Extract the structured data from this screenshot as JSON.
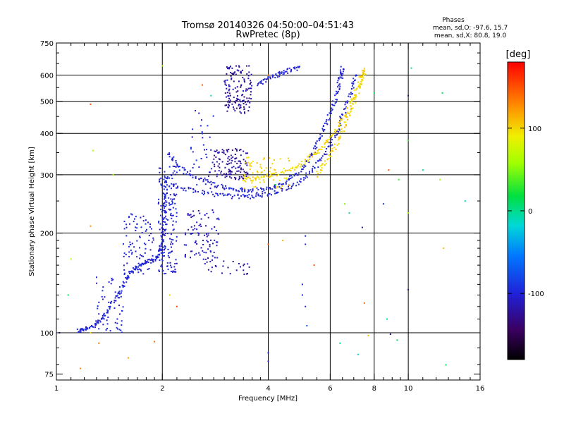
{
  "chart_data": {
    "type": "scatter",
    "title": "Tromsø 20140326 04:50:00–04:51:43",
    "subtitle": "RwPretec (8p)",
    "xlabel": "Frequency [MHz]",
    "ylabel": "Stationary phase Virtual Height [km]",
    "x_scale": "log",
    "y_scale": "log",
    "xlim": [
      1,
      16
    ],
    "ylim": [
      72,
      750
    ],
    "x_ticks": [
      1,
      2,
      4,
      6,
      8,
      10,
      16
    ],
    "x_minor_ticks": [
      1.1,
      1.2,
      1.3,
      1.4,
      1.5,
      1.6,
      1.7,
      1.8,
      1.9,
      2.2,
      2.4,
      2.6,
      2.8,
      3.0,
      3.2,
      3.4,
      3.6,
      3.8,
      4.5,
      5.0,
      5.5,
      6.5,
      7.0,
      7.5,
      8.5,
      9.0,
      9.5,
      11,
      12,
      13,
      14,
      15
    ],
    "y_ticks": [
      75,
      100,
      200,
      300,
      400,
      500,
      600,
      750
    ],
    "y_minor_ticks": [
      80,
      90,
      110,
      120,
      130,
      140,
      150,
      160,
      170,
      180,
      190,
      250,
      350,
      450,
      550,
      650,
      700
    ],
    "x_grid": [
      2,
      4,
      6,
      8,
      10
    ],
    "y_grid": [
      100,
      200,
      300,
      400,
      500,
      600
    ],
    "grid": true,
    "stats_header": "Phases",
    "stats": [
      "mean, sd,O: -97.6, 15.7",
      "mean, sd,X:  80.8, 19.0"
    ],
    "colorbar": {
      "label": "[deg]",
      "range": [
        -180,
        180
      ],
      "ticks": [
        100,
        0,
        -100
      ],
      "tick_labels": [
        "100",
        "0",
        "-100"
      ],
      "placement": "right"
    },
    "series": [
      {
        "kind": "trace",
        "phase": -100,
        "points": [
          [
            1.15,
            101
          ],
          [
            1.2,
            103
          ],
          [
            1.28,
            105
          ],
          [
            1.35,
            110
          ],
          [
            1.42,
            120
          ],
          [
            1.5,
            132
          ],
          [
            1.58,
            145
          ],
          [
            1.65,
            155
          ],
          [
            1.75,
            162
          ],
          [
            1.85,
            165
          ],
          [
            1.95,
            170
          ],
          [
            2.0,
            185
          ],
          [
            2.02,
            210
          ],
          [
            2.03,
            240
          ],
          [
            2.04,
            270
          ],
          [
            2.05,
            300
          ]
        ]
      },
      {
        "kind": "trace",
        "phase": -100,
        "points": [
          [
            2.08,
            350
          ],
          [
            2.2,
            320
          ],
          [
            2.4,
            300
          ],
          [
            2.7,
            285
          ],
          [
            3.0,
            275
          ],
          [
            3.3,
            270
          ],
          [
            3.6,
            268
          ],
          [
            4.0,
            272
          ],
          [
            4.4,
            282
          ],
          [
            4.8,
            300
          ],
          [
            5.2,
            330
          ],
          [
            5.5,
            370
          ],
          [
            5.8,
            420
          ],
          [
            6.1,
            480
          ],
          [
            6.3,
            540
          ],
          [
            6.45,
            600
          ],
          [
            6.5,
            630
          ]
        ]
      },
      {
        "kind": "trace",
        "phase": -100,
        "points": [
          [
            2.08,
            280
          ],
          [
            2.4,
            270
          ],
          [
            2.8,
            262
          ],
          [
            3.2,
            258
          ],
          [
            3.6,
            258
          ],
          [
            4.0,
            262
          ],
          [
            4.5,
            272
          ],
          [
            5.0,
            290
          ],
          [
            5.5,
            320
          ],
          [
            5.9,
            360
          ],
          [
            6.3,
            410
          ],
          [
            6.6,
            470
          ],
          [
            6.9,
            540
          ],
          [
            7.1,
            610
          ]
        ]
      },
      {
        "kind": "trace",
        "phase": 100,
        "points": [
          [
            3.4,
            290
          ],
          [
            3.8,
            295
          ],
          [
            4.2,
            300
          ],
          [
            4.6,
            310
          ],
          [
            5.0,
            325
          ],
          [
            5.4,
            345
          ],
          [
            5.8,
            370
          ],
          [
            6.2,
            405
          ],
          [
            6.6,
            450
          ],
          [
            7.0,
            510
          ],
          [
            7.3,
            580
          ],
          [
            7.5,
            630
          ]
        ]
      },
      {
        "kind": "trace",
        "phase": 100,
        "points": [
          [
            5.5,
            300
          ],
          [
            5.9,
            330
          ],
          [
            6.3,
            380
          ],
          [
            6.7,
            440
          ],
          [
            7.0,
            500
          ],
          [
            7.3,
            560
          ],
          [
            7.5,
            610
          ]
        ]
      },
      {
        "kind": "trace",
        "phase": -100,
        "points": [
          [
            3.7,
            560
          ],
          [
            4.0,
            585
          ],
          [
            4.3,
            605
          ],
          [
            4.6,
            620
          ],
          [
            4.9,
            630
          ]
        ]
      },
      {
        "kind": "cluster",
        "phase": -120,
        "x": [
          2.8,
          3.5
        ],
        "y": [
          290,
          360
        ],
        "count": 120
      },
      {
        "kind": "cluster",
        "phase": -120,
        "x": [
          3.0,
          3.6
        ],
        "y": [
          460,
          640
        ],
        "count": 140
      },
      {
        "kind": "cluster",
        "phase": -110,
        "x": [
          2.3,
          2.9
        ],
        "y": [
          165,
          235
        ],
        "count": 90
      },
      {
        "kind": "cluster",
        "phase": -100,
        "x": [
          1.95,
          2.2
        ],
        "y": [
          150,
          320
        ],
        "count": 160
      },
      {
        "kind": "cluster",
        "phase": -100,
        "x": [
          1.55,
          1.9
        ],
        "y": [
          150,
          230
        ],
        "count": 90
      },
      {
        "kind": "cluster",
        "phase": -100,
        "x": [
          1.3,
          1.55
        ],
        "y": [
          100,
          150
        ],
        "count": 50
      },
      {
        "kind": "cluster",
        "phase": 100,
        "x": [
          3.4,
          4.6
        ],
        "y": [
          270,
          340
        ],
        "count": 60
      },
      {
        "kind": "cluster",
        "phase": -120,
        "x": [
          2.6,
          3.6
        ],
        "y": [
          150,
          165
        ],
        "count": 25
      },
      {
        "kind": "cluster",
        "phase": -100,
        "x": [
          2.4,
          2.8
        ],
        "y": [
          260,
          480
        ],
        "count": 40
      }
    ],
    "scattered_points": [
      {
        "x": 1.02,
        "y": 100,
        "phase": -100
      },
      {
        "x": 1.08,
        "y": 130,
        "phase": 10
      },
      {
        "x": 1.25,
        "y": 100,
        "phase": 100
      },
      {
        "x": 1.32,
        "y": 93,
        "phase": 130
      },
      {
        "x": 1.6,
        "y": 84,
        "phase": 120
      },
      {
        "x": 1.9,
        "y": 94,
        "phase": 140
      },
      {
        "x": 1.17,
        "y": 78,
        "phase": 130
      },
      {
        "x": 1.27,
        "y": 355,
        "phase": 60
      },
      {
        "x": 1.25,
        "y": 490,
        "phase": 150
      },
      {
        "x": 1.25,
        "y": 210,
        "phase": 130
      },
      {
        "x": 1.1,
        "y": 167,
        "phase": 60
      },
      {
        "x": 2.2,
        "y": 120,
        "phase": 150
      },
      {
        "x": 2.1,
        "y": 130,
        "phase": 100
      },
      {
        "x": 2.6,
        "y": 560,
        "phase": 150
      },
      {
        "x": 2.75,
        "y": 520,
        "phase": -10
      },
      {
        "x": 4.0,
        "y": 600,
        "phase": 130
      },
      {
        "x": 4.0,
        "y": 185,
        "phase": 150
      },
      {
        "x": 4.4,
        "y": 190,
        "phase": 110
      },
      {
        "x": 5.1,
        "y": 196,
        "phase": -100
      },
      {
        "x": 5.1,
        "y": 185,
        "phase": -100
      },
      {
        "x": 5.0,
        "y": 130,
        "phase": -100
      },
      {
        "x": 5.1,
        "y": 120,
        "phase": -100
      },
      {
        "x": 5.15,
        "y": 105,
        "phase": -70
      },
      {
        "x": 5.0,
        "y": 140,
        "phase": -100
      },
      {
        "x": 5.4,
        "y": 160,
        "phase": 150
      },
      {
        "x": 4.0,
        "y": 82,
        "phase": -100
      },
      {
        "x": 4.0,
        "y": 87,
        "phase": -100
      },
      {
        "x": 4.2,
        "y": 280,
        "phase": 10
      },
      {
        "x": 6.4,
        "y": 93,
        "phase": 0
      },
      {
        "x": 6.6,
        "y": 245,
        "phase": 50
      },
      {
        "x": 6.8,
        "y": 230,
        "phase": 0
      },
      {
        "x": 7.2,
        "y": 86,
        "phase": -20
      },
      {
        "x": 7.4,
        "y": 208,
        "phase": -130
      },
      {
        "x": 7.5,
        "y": 123,
        "phase": 140
      },
      {
        "x": 7.7,
        "y": 98,
        "phase": 110
      },
      {
        "x": 8.5,
        "y": 245,
        "phase": -90
      },
      {
        "x": 8.9,
        "y": 99,
        "phase": -130
      },
      {
        "x": 9.3,
        "y": 95,
        "phase": 10
      },
      {
        "x": 8.8,
        "y": 310,
        "phase": 150
      },
      {
        "x": 9.4,
        "y": 290,
        "phase": 30
      },
      {
        "x": 10.0,
        "y": 380,
        "phase": 30
      },
      {
        "x": 10.0,
        "y": 520,
        "phase": -130
      },
      {
        "x": 10.0,
        "y": 135,
        "phase": -130
      },
      {
        "x": 10.0,
        "y": 230,
        "phase": 50
      },
      {
        "x": 10.2,
        "y": 630,
        "phase": 0
      },
      {
        "x": 12.5,
        "y": 530,
        "phase": 10
      },
      {
        "x": 12.3,
        "y": 290,
        "phase": 60
      },
      {
        "x": 12.6,
        "y": 180,
        "phase": 110
      },
      {
        "x": 12.8,
        "y": 80,
        "phase": 10
      },
      {
        "x": 14.5,
        "y": 250,
        "phase": -10
      },
      {
        "x": 11.0,
        "y": 310,
        "phase": 0
      },
      {
        "x": 8.0,
        "y": 530,
        "phase": 10
      },
      {
        "x": 8.7,
        "y": 110,
        "phase": -10
      },
      {
        "x": 2.0,
        "y": 640,
        "phase": 60
      },
      {
        "x": 1.45,
        "y": 300,
        "phase": 60
      }
    ]
  }
}
